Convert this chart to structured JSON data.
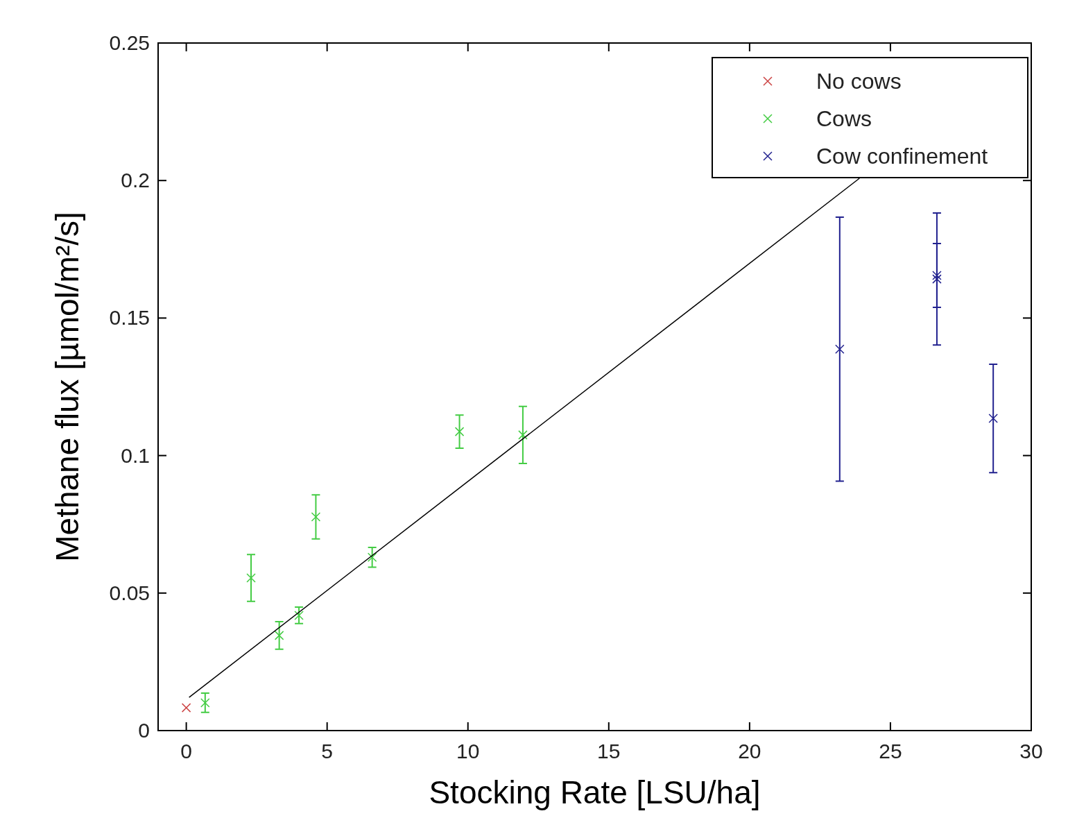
{
  "chart_data": {
    "type": "scatter",
    "xlabel": "Stocking Rate [LSU/ha]",
    "ylabel": "Methane flux [µmol/m²/s]",
    "xlim": [
      -1,
      30
    ],
    "xticks": [
      0,
      5,
      10,
      15,
      20,
      25,
      30
    ],
    "ylim": [
      0,
      0.25
    ],
    "yticks": [
      0,
      0.05,
      0.1,
      0.15,
      0.2,
      0.25
    ],
    "grid": false,
    "legend": "top right",
    "marker": "cross",
    "series": [
      {
        "name": "No cows",
        "color": "#cc4444",
        "x": [
          0
        ],
        "values": [
          0.0083
        ]
      },
      {
        "name": "Cows",
        "color": "#44cc44",
        "x": [
          0.67,
          2.3,
          3.3,
          4.0,
          4.6,
          6.6,
          9.7,
          11.95
        ],
        "values": [
          0.0101,
          0.0555,
          0.0346,
          0.0419,
          0.0777,
          0.063,
          0.1087,
          0.1075
        ],
        "errors": [
          0.0035,
          0.0085,
          0.005,
          0.003,
          0.008,
          0.0036,
          0.006,
          0.0104
        ]
      },
      {
        "name": "Cow confinement",
        "color": "#22228f",
        "x": [
          23.2,
          26.65,
          26.65,
          28.65
        ],
        "values": [
          0.1387,
          0.1642,
          0.1655,
          0.1135
        ],
        "errors": [
          0.048,
          0.024,
          0.0116,
          0.0197
        ]
      },
      {
        "type": "line",
        "color": "#000000",
        "marker": "none",
        "line_style": "solid",
        "x": [
          0.1,
          23.9
        ],
        "values": [
          0.0121,
          0.2008
        ]
      }
    ]
  }
}
